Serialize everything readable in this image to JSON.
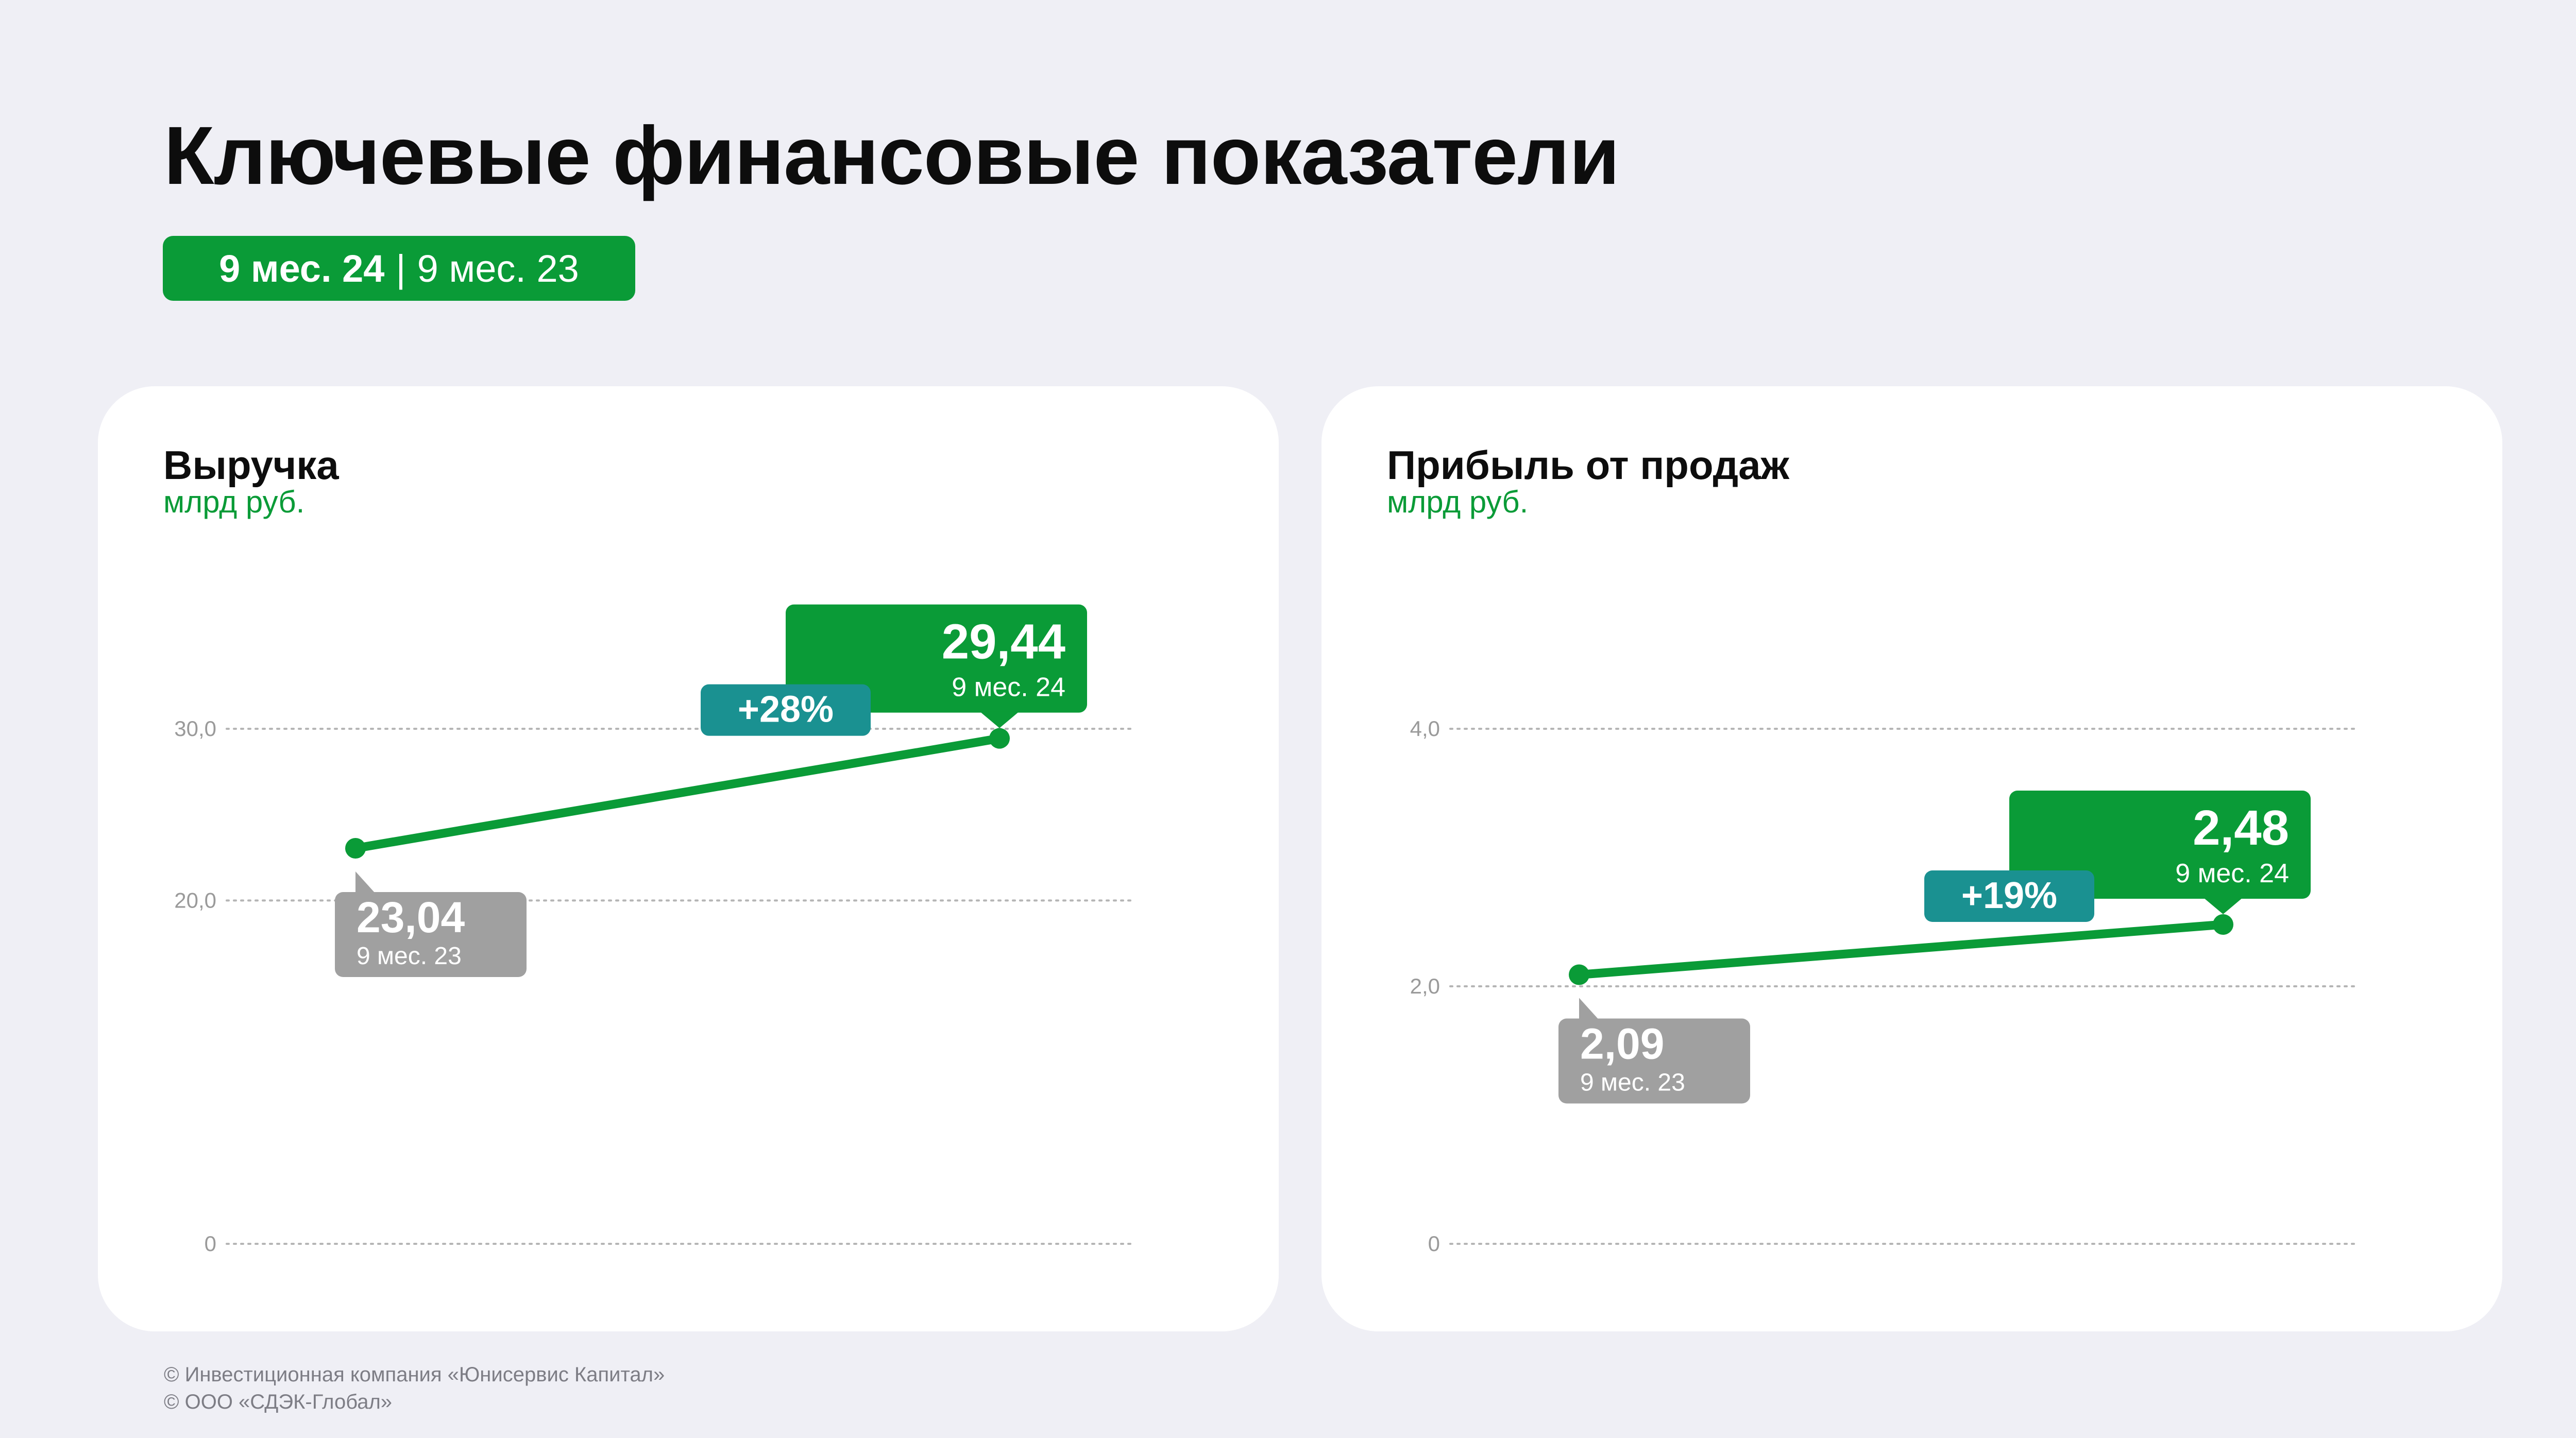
{
  "header": {
    "title": "Ключевые финансовые показатели",
    "period_current": "9 мес. 24",
    "period_separator": "|",
    "period_previous": "9 мес. 23"
  },
  "colors": {
    "accent_green": "#0a9b37",
    "teal": "#1a9191",
    "gray_label": "#a0a0a0",
    "background": "#efeff5"
  },
  "chart_data": [
    {
      "type": "line",
      "title": "Выручка",
      "ylabel": "млрд руб.",
      "ylim": [
        0,
        30
      ],
      "yticks": [
        0,
        20,
        30
      ],
      "ytick_labels": [
        "0",
        "20,0",
        "30,0"
      ],
      "grid": true,
      "categories": [
        "9 мес. 23",
        "9 мес. 24"
      ],
      "values": [
        23.04,
        29.44
      ],
      "value_labels": [
        "23,04",
        "29,44"
      ],
      "change_label": "+28%"
    },
    {
      "type": "line",
      "title": "Прибыль от продаж",
      "ylabel": "млрд руб.",
      "ylim": [
        0,
        4
      ],
      "yticks": [
        0,
        2,
        4
      ],
      "ytick_labels": [
        "0",
        "2,0",
        "4,0"
      ],
      "grid": true,
      "categories": [
        "9 мес. 23",
        "9 мес. 24"
      ],
      "values": [
        2.09,
        2.48
      ],
      "value_labels": [
        "2,09",
        "2,48"
      ],
      "change_label": "+19%"
    }
  ],
  "footer": {
    "line1": "© Инвестиционная компания «Юнисервис Капитал»",
    "line2": "© ООО «СДЭК-Глобал»"
  }
}
